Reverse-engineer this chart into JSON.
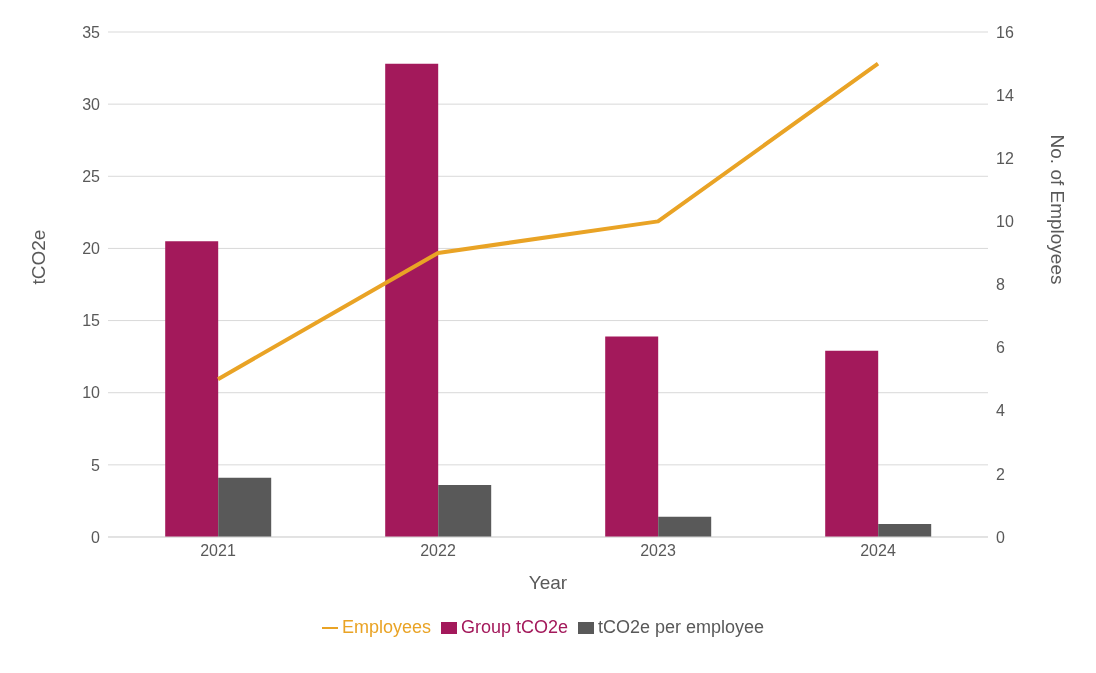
{
  "chart_data": {
    "type": "bar",
    "xlabel": "Year",
    "ylabel": "tCO2e",
    "y2label": "No. of Employees",
    "categories": [
      "2021",
      "2022",
      "2023",
      "2024"
    ],
    "series": [
      {
        "name": "Group tCO2e",
        "color": "#a3195b",
        "values": [
          20.5,
          32.8,
          13.9,
          12.9
        ]
      },
      {
        "name": "tCO2e per employee",
        "color": "#595959",
        "values": [
          4.1,
          3.6,
          1.4,
          0.9
        ]
      },
      {
        "name": "Employees",
        "type": "line",
        "axis": "y2",
        "color": "#e9a325",
        "values": [
          5,
          9,
          10,
          15
        ]
      }
    ],
    "ylim": [
      0,
      35
    ],
    "yticks": [
      0,
      5,
      10,
      15,
      20,
      25,
      30,
      35
    ],
    "y2lim": [
      0,
      16
    ],
    "y2ticks": [
      0,
      2,
      4,
      6,
      8,
      10,
      12,
      14,
      16
    ],
    "grid": "y",
    "legend": "bottom",
    "marker": "none",
    "line_style": "solid"
  }
}
